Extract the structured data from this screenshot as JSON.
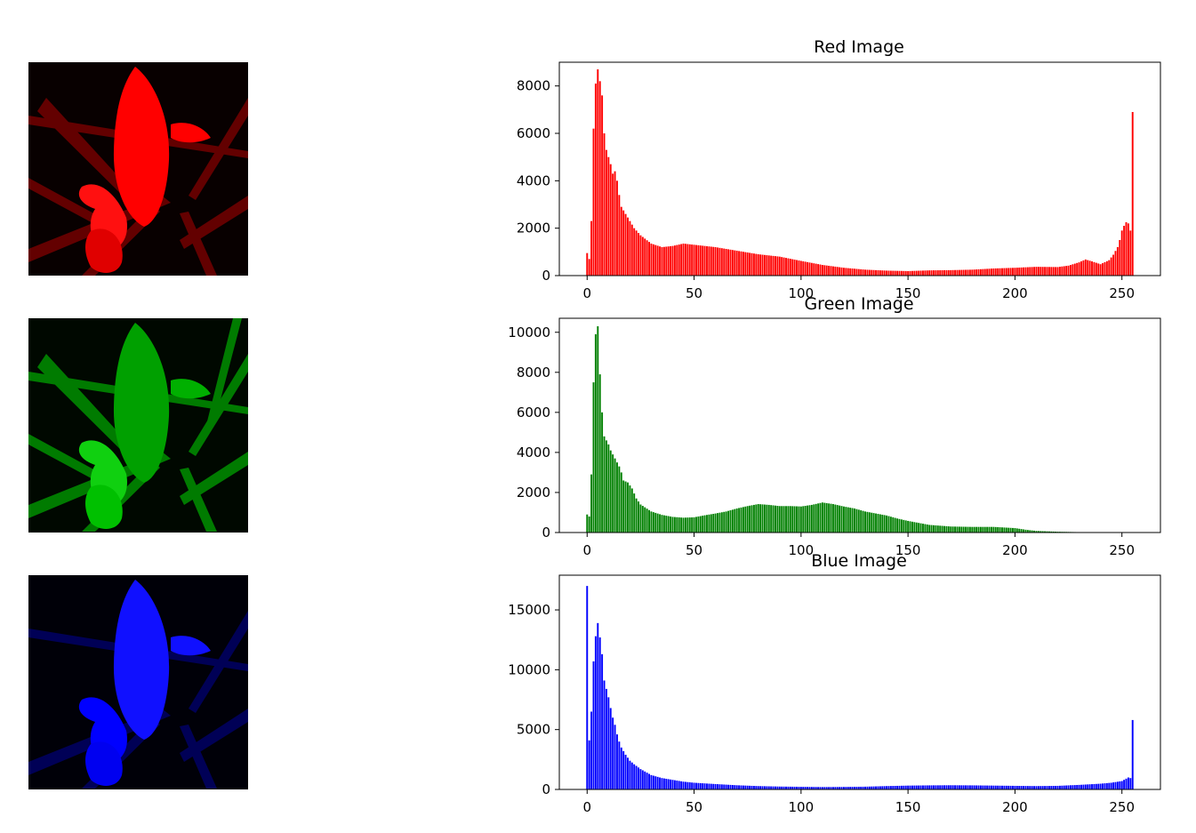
{
  "panels": [
    {
      "id": "red",
      "title": "Red Image",
      "image_color": "#ff0000",
      "bar_color": "#ff0000",
      "image_icon": "red-channel-flower-image"
    },
    {
      "id": "green",
      "title": "Green Image",
      "image_color": "#00c000",
      "bar_color": "#008000",
      "image_icon": "green-channel-flower-image"
    },
    {
      "id": "blue",
      "title": "Blue Image",
      "image_color": "#0000ff",
      "bar_color": "#0000ff",
      "image_icon": "blue-channel-flower-image"
    }
  ],
  "chart_data": [
    {
      "type": "bar",
      "title": "Red Image",
      "xlim": [
        -13,
        268
      ],
      "ylim": [
        0,
        9000
      ],
      "xticks": [
        0,
        50,
        100,
        150,
        200,
        250
      ],
      "yticks": [
        0,
        2000,
        4000,
        6000,
        8000
      ],
      "grid": false,
      "anchors": [
        [
          0,
          950
        ],
        [
          1,
          700
        ],
        [
          2,
          2300
        ],
        [
          3,
          6200
        ],
        [
          4,
          8100
        ],
        [
          5,
          8700
        ],
        [
          6,
          8200
        ],
        [
          7,
          7600
        ],
        [
          8,
          6000
        ],
        [
          9,
          5300
        ],
        [
          10,
          5000
        ],
        [
          11,
          4700
        ],
        [
          12,
          4300
        ],
        [
          13,
          4400
        ],
        [
          14,
          4000
        ],
        [
          15,
          3400
        ],
        [
          16,
          2900
        ],
        [
          18,
          2600
        ],
        [
          20,
          2300
        ],
        [
          22,
          2000
        ],
        [
          25,
          1700
        ],
        [
          30,
          1350
        ],
        [
          35,
          1200
        ],
        [
          40,
          1250
        ],
        [
          45,
          1350
        ],
        [
          50,
          1300
        ],
        [
          60,
          1200
        ],
        [
          70,
          1050
        ],
        [
          80,
          900
        ],
        [
          90,
          800
        ],
        [
          100,
          620
        ],
        [
          110,
          450
        ],
        [
          120,
          330
        ],
        [
          130,
          250
        ],
        [
          140,
          210
        ],
        [
          150,
          190
        ],
        [
          160,
          220
        ],
        [
          170,
          230
        ],
        [
          180,
          250
        ],
        [
          190,
          300
        ],
        [
          200,
          330
        ],
        [
          210,
          370
        ],
        [
          220,
          360
        ],
        [
          225,
          420
        ],
        [
          230,
          560
        ],
        [
          233,
          680
        ],
        [
          236,
          600
        ],
        [
          240,
          480
        ],
        [
          244,
          650
        ],
        [
          246,
          880
        ],
        [
          248,
          1200
        ],
        [
          249,
          1500
        ],
        [
          250,
          1900
        ],
        [
          251,
          2100
        ],
        [
          252,
          2250
        ],
        [
          253,
          2200
        ],
        [
          254,
          1900
        ],
        [
          255,
          6900
        ]
      ]
    },
    {
      "type": "bar",
      "title": "Green Image",
      "xlim": [
        -13,
        268
      ],
      "ylim": [
        0,
        10700
      ],
      "xticks": [
        0,
        50,
        100,
        150,
        200,
        250
      ],
      "yticks": [
        0,
        2000,
        4000,
        6000,
        8000,
        10000
      ],
      "grid": false,
      "anchors": [
        [
          0,
          900
        ],
        [
          1,
          800
        ],
        [
          2,
          2900
        ],
        [
          3,
          7500
        ],
        [
          4,
          9900
        ],
        [
          5,
          10300
        ],
        [
          6,
          7900
        ],
        [
          7,
          6000
        ],
        [
          8,
          4800
        ],
        [
          9,
          4600
        ],
        [
          10,
          4400
        ],
        [
          11,
          4100
        ],
        [
          12,
          3900
        ],
        [
          13,
          3700
        ],
        [
          14,
          3500
        ],
        [
          15,
          3300
        ],
        [
          16,
          3000
        ],
        [
          17,
          2600
        ],
        [
          19,
          2500
        ],
        [
          21,
          2200
        ],
        [
          23,
          1700
        ],
        [
          25,
          1400
        ],
        [
          30,
          1050
        ],
        [
          35,
          880
        ],
        [
          40,
          780
        ],
        [
          45,
          740
        ],
        [
          50,
          760
        ],
        [
          55,
          860
        ],
        [
          60,
          950
        ],
        [
          65,
          1050
        ],
        [
          70,
          1200
        ],
        [
          75,
          1320
        ],
        [
          80,
          1420
        ],
        [
          85,
          1380
        ],
        [
          90,
          1320
        ],
        [
          95,
          1320
        ],
        [
          100,
          1300
        ],
        [
          105,
          1380
        ],
        [
          110,
          1500
        ],
        [
          115,
          1420
        ],
        [
          120,
          1300
        ],
        [
          125,
          1200
        ],
        [
          130,
          1050
        ],
        [
          135,
          950
        ],
        [
          140,
          850
        ],
        [
          145,
          700
        ],
        [
          150,
          580
        ],
        [
          155,
          480
        ],
        [
          160,
          380
        ],
        [
          170,
          300
        ],
        [
          180,
          280
        ],
        [
          190,
          280
        ],
        [
          200,
          220
        ],
        [
          205,
          140
        ],
        [
          210,
          80
        ],
        [
          220,
          40
        ],
        [
          230,
          20
        ],
        [
          240,
          10
        ],
        [
          250,
          5
        ],
        [
          255,
          5
        ]
      ]
    },
    {
      "type": "bar",
      "title": "Blue Image",
      "xlim": [
        -13,
        268
      ],
      "ylim": [
        0,
        17900
      ],
      "xticks": [
        0,
        50,
        100,
        150,
        200,
        250
      ],
      "yticks": [
        0,
        5000,
        10000,
        15000
      ],
      "grid": false,
      "anchors": [
        [
          0,
          17000
        ],
        [
          1,
          4100
        ],
        [
          2,
          6500
        ],
        [
          3,
          10700
        ],
        [
          4,
          12800
        ],
        [
          5,
          13900
        ],
        [
          6,
          12700
        ],
        [
          7,
          11300
        ],
        [
          8,
          9100
        ],
        [
          9,
          8400
        ],
        [
          10,
          7700
        ],
        [
          11,
          6800
        ],
        [
          12,
          6000
        ],
        [
          13,
          5400
        ],
        [
          14,
          4600
        ],
        [
          15,
          4000
        ],
        [
          16,
          3500
        ],
        [
          18,
          2900
        ],
        [
          20,
          2400
        ],
        [
          22,
          2100
        ],
        [
          25,
          1700
        ],
        [
          30,
          1200
        ],
        [
          35,
          950
        ],
        [
          40,
          800
        ],
        [
          45,
          650
        ],
        [
          50,
          560
        ],
        [
          60,
          450
        ],
        [
          70,
          350
        ],
        [
          80,
          280
        ],
        [
          90,
          240
        ],
        [
          100,
          220
        ],
        [
          110,
          200
        ],
        [
          120,
          210
        ],
        [
          130,
          230
        ],
        [
          140,
          280
        ],
        [
          150,
          320
        ],
        [
          160,
          340
        ],
        [
          170,
          350
        ],
        [
          180,
          340
        ],
        [
          190,
          320
        ],
        [
          200,
          300
        ],
        [
          210,
          280
        ],
        [
          220,
          300
        ],
        [
          230,
          380
        ],
        [
          240,
          480
        ],
        [
          245,
          560
        ],
        [
          250,
          700
        ],
        [
          252,
          900
        ],
        [
          253,
          1000
        ],
        [
          254,
          950
        ],
        [
          255,
          5800
        ]
      ]
    }
  ]
}
